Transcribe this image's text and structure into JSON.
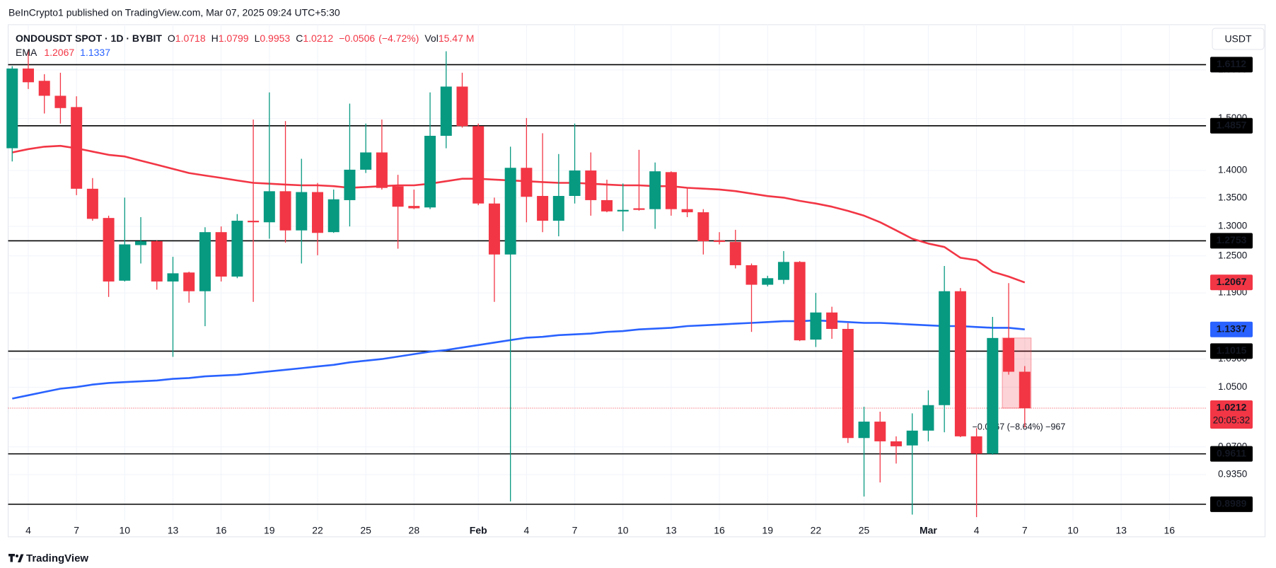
{
  "header": "BeInCrypto1 published on TradingView.com, Mar 07, 2025 09:24 UTC+5:30",
  "footer": "TradingView",
  "chart_data": {
    "type": "candlestick",
    "symbol": "ONDOUSDT SPOT · 1D · BYBIT",
    "currency": "USDT",
    "legend_keys": {
      "open": "O",
      "high": "H",
      "low": "L",
      "close": "C",
      "volume": "Vol"
    },
    "change": {
      "value": -0.0506,
      "label": "−0.0506"
    },
    "change_percent": {
      "value": -4.72,
      "label": "(−4.72%)"
    },
    "volume": {
      "value": 15470000,
      "label": "15.47 M"
    },
    "countdown": "20:05:32",
    "annotation": "−0.0967 (−8.64%) −967",
    "categories": [
      null,
      "4",
      null,
      null,
      "7",
      null,
      null,
      "10",
      null,
      null,
      "13",
      null,
      null,
      "16",
      null,
      null,
      "19",
      null,
      null,
      "22",
      null,
      null,
      "25",
      null,
      null,
      "28",
      null,
      null,
      null,
      "Feb",
      null,
      null,
      "4",
      null,
      null,
      "7",
      null,
      null,
      "10",
      null,
      null,
      "13",
      null,
      null,
      "16",
      null,
      null,
      "19",
      null,
      null,
      "22",
      null,
      null,
      "25",
      null,
      null,
      null,
      "Mar",
      null,
      null,
      "4",
      null,
      null,
      "7",
      null,
      null,
      "10",
      null,
      null,
      "13",
      null,
      null,
      "16"
    ],
    "series": [
      {
        "up_color": "#089981",
        "down_color": "#f23645",
        "open": [
          1.442,
          1.603,
          1.577,
          1.546,
          1.523,
          1.3665,
          1.3145,
          1.2095,
          1.268,
          1.2746,
          1.2082,
          1.2227,
          1.1927,
          1.29,
          1.2161,
          1.3097,
          1.307,
          1.362,
          1.293,
          1.3605,
          1.29,
          1.346,
          1.4015,
          1.434,
          1.371,
          1.3357,
          1.333,
          1.466,
          1.565,
          1.485,
          1.34,
          1.2523,
          1.405,
          1.3535,
          1.3097,
          1.3535,
          1.4,
          1.346,
          1.326,
          1.3315,
          1.33,
          1.397,
          1.33,
          1.3245,
          1.276,
          1.2733,
          1.2346,
          1.203,
          1.2108,
          1.24,
          1.1185,
          1.1595,
          1.1345,
          0.9815,
          1.0031,
          0.9772,
          0.9719,
          0.9912,
          1.0253,
          1.1927,
          0.9837,
          0.9613,
          1.1209,
          1.0718,
          null,
          null,
          null,
          null,
          null,
          null,
          null,
          null,
          null
        ],
        "high": [
          1.608,
          1.644,
          1.591,
          1.594,
          1.545,
          1.386,
          1.3185,
          1.3505,
          1.316,
          1.276,
          1.2483,
          1.224,
          1.2985,
          1.2998,
          1.3213,
          1.498,
          1.553,
          1.495,
          1.422,
          1.377,
          1.365,
          1.53,
          1.49,
          1.498,
          1.392,
          1.365,
          1.553,
          1.64,
          1.594,
          1.49,
          1.3505,
          1.445,
          1.501,
          1.471,
          1.431,
          1.49,
          1.434,
          1.383,
          1.376,
          1.439,
          1.415,
          1.3985,
          1.369,
          1.33,
          1.29,
          1.294,
          1.2374,
          1.2174,
          1.258,
          1.2414,
          1.19,
          1.1684,
          1.1432,
          1.0231,
          1.0164,
          0.9837,
          1.0142,
          1.0457,
          1.2333,
          1.1978,
          0.9944,
          1.1527,
          1.2056,
          1.0799,
          null,
          null,
          null,
          null,
          null,
          null,
          null,
          null,
          null
        ],
        "low": [
          1.417,
          1.56,
          1.51,
          1.49,
          1.355,
          1.3097,
          1.1837,
          1.2082,
          1.2374,
          1.1952,
          1.0932,
          1.1747,
          1.1386,
          1.2082,
          1.2135,
          1.176,
          1.2788,
          1.272,
          1.2374,
          1.251,
          1.2887,
          1.2998,
          1.3954,
          1.365,
          1.262,
          1.33,
          1.33,
          1.442,
          1.482,
          1.337,
          1.176,
          0.9023,
          1.307,
          1.29,
          1.2829,
          1.34,
          1.3185,
          1.3245,
          1.2916,
          1.3273,
          1.2956,
          1.3185,
          1.316,
          1.2523,
          1.2692,
          1.2293,
          1.13,
          1.2004,
          1.2043,
          1.1163,
          1.1076,
          1.1197,
          0.9751,
          0.9082,
          0.9253,
          0.9488,
          0.8866,
          0.9772,
          0.989,
          0.9826,
          0.8837,
          0.96,
          1.0677,
          0.9953,
          null,
          null,
          null,
          null,
          null,
          null,
          null,
          null,
          null
        ],
        "close": [
          1.603,
          1.574,
          1.546,
          1.521,
          1.3665,
          1.313,
          1.2082,
          1.2692,
          1.2746,
          1.2082,
          1.2214,
          1.1927,
          1.29,
          1.2161,
          1.3097,
          1.307,
          1.362,
          1.293,
          1.3605,
          1.2887,
          1.3475,
          1.4015,
          1.434,
          1.368,
          1.3343,
          1.3315,
          1.466,
          1.565,
          1.485,
          1.34,
          1.2523,
          1.405,
          1.352,
          1.3097,
          1.3535,
          1.4,
          1.346,
          1.326,
          1.3287,
          1.3287,
          1.3985,
          1.33,
          1.3245,
          1.2746,
          1.2733,
          1.2346,
          1.203,
          1.2135,
          1.24,
          1.1174,
          1.1595,
          1.1345,
          0.9815,
          1.0031,
          0.9772,
          0.9708,
          0.9912,
          1.0253,
          1.1927,
          0.9837,
          0.9613,
          1.1209,
          1.0718,
          1.0212,
          null,
          null,
          null,
          null,
          null,
          null,
          null,
          null,
          null
        ]
      }
    ],
    "ema": {
      "name": "EMA",
      "series": [
        {
          "color": "#f23645",
          "values": [
            1.434,
            1.4403,
            1.445,
            1.4466,
            1.442,
            1.4356,
            1.4294,
            1.4263,
            1.4185,
            1.4108,
            1.4031,
            1.3954,
            1.3908,
            1.3863,
            1.3817,
            1.3772,
            1.3757,
            1.3742,
            1.3727,
            1.3727,
            1.3712,
            1.3682,
            1.3697,
            1.3712,
            1.3727,
            1.3727,
            1.3757,
            1.3802,
            1.3848,
            1.3848,
            1.3832,
            1.3817,
            1.3802,
            1.3787,
            1.3772,
            1.3772,
            1.3757,
            1.3742,
            1.3727,
            1.3727,
            1.3712,
            1.3712,
            1.3682,
            1.3667,
            1.3652,
            1.3622,
            1.3577,
            1.3533,
            1.3505,
            1.3446,
            1.34,
            1.3343,
            1.327,
            1.3185,
            1.307,
            1.293,
            1.2788,
            1.2706,
            1.2648,
            1.2469,
            1.2429,
            1.224,
            1.2161,
            1.2067,
            null,
            null,
            null,
            null,
            null,
            null,
            null,
            null,
            null
          ]
        },
        {
          "color": "#2962ff",
          "values": [
            1.0343,
            1.0388,
            1.0434,
            1.0479,
            1.0502,
            1.0537,
            1.0559,
            1.0571,
            1.0582,
            1.0594,
            1.0617,
            1.0629,
            1.0652,
            1.0664,
            1.0675,
            1.0699,
            1.0722,
            1.0745,
            1.0769,
            1.0793,
            1.0816,
            1.0852,
            1.0876,
            1.09,
            1.0936,
            1.0972,
            1.1007,
            1.1031,
            1.1068,
            1.1105,
            1.1141,
            1.1178,
            1.1214,
            1.1226,
            1.1251,
            1.1263,
            1.1275,
            1.13,
            1.1312,
            1.1337,
            1.1349,
            1.1362,
            1.1387,
            1.1399,
            1.1411,
            1.1424,
            1.1436,
            1.1449,
            1.1461,
            1.1461,
            1.1474,
            1.1461,
            1.1449,
            1.1436,
            1.1436,
            1.1424,
            1.1411,
            1.1399,
            1.1387,
            1.1387,
            1.1374,
            1.1362,
            1.1362,
            1.1337,
            null,
            null,
            null,
            null,
            null,
            null,
            null,
            null,
            null
          ]
        }
      ]
    },
    "levels": [
      1.6112,
      1.4857,
      1.2753,
      1.1015,
      0.9611,
      0.8989
    ],
    "level_color": "#000000",
    "ylim": [
      0.88,
      1.699
    ],
    "log_scale": true,
    "yticks": [
      {
        "value": 1.6,
        "label": "1.6000"
      },
      {
        "value": 1.5,
        "label": "1.5000"
      },
      {
        "value": 1.4,
        "label": "1.4000"
      },
      {
        "value": 1.35,
        "label": "1.3500"
      },
      {
        "value": 1.3,
        "label": "1.3000"
      },
      {
        "value": 1.25,
        "label": "1.2500"
      },
      {
        "value": 1.19,
        "label": "1.1900"
      },
      {
        "value": 1.09,
        "label": "1.0900"
      },
      {
        "value": 1.05,
        "label": "1.0500"
      },
      {
        "value": 0.97,
        "label": "0.9700"
      },
      {
        "value": 0.935,
        "label": "0.9350"
      }
    ],
    "grid": true
  }
}
